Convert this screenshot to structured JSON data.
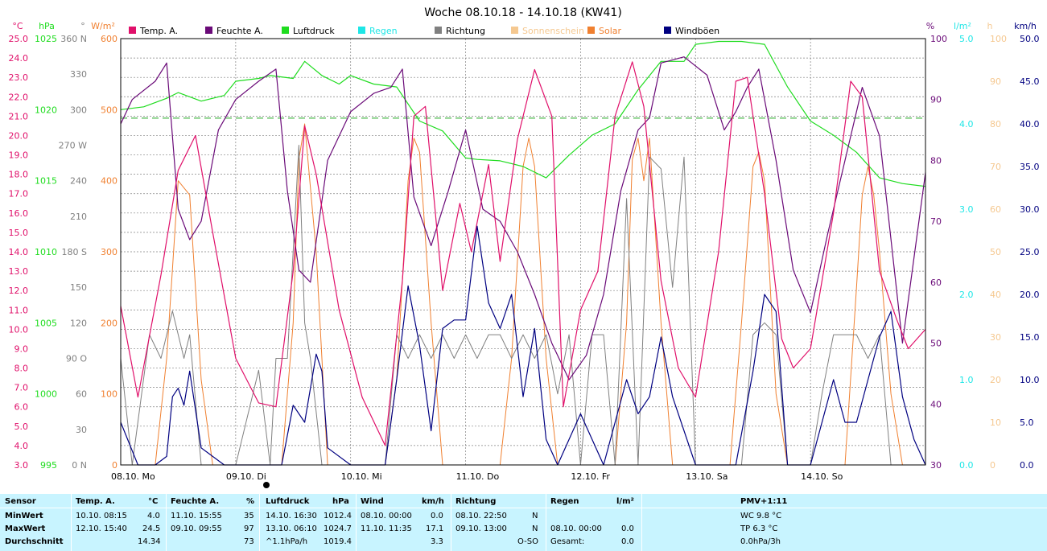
{
  "title": "Woche 08.10.18 - 14.10.18 (KW41)",
  "colors": {
    "temp": "#e0106a",
    "humidity": "#6a0a78",
    "pressure": "#1fdc1f",
    "rain": "#1ee6e6",
    "direction": "#808080",
    "sunshine": "#f5c890",
    "solar": "#f08030",
    "gust": "#000080",
    "grid": "#808080",
    "avg_line": "#1fa81f",
    "table_bg": "#c8f4ff"
  },
  "legend": [
    {
      "key": "temp",
      "label": "Temp. A."
    },
    {
      "key": "humidity",
      "label": "Feuchte A."
    },
    {
      "key": "pressure",
      "label": "Luftdruck"
    },
    {
      "key": "rain",
      "label": "Regen"
    },
    {
      "key": "direction",
      "label": "Richtung"
    },
    {
      "key": "sunshine",
      "label": "Sonnenschein"
    },
    {
      "key": "solar",
      "label": "Solar"
    },
    {
      "key": "gust",
      "label": "Windböen"
    }
  ],
  "axes": {
    "temp": {
      "unit": "°C",
      "ticks": [
        "25.0",
        "24.0",
        "23.0",
        "22.0",
        "21.0",
        "20.0",
        "19.0",
        "18.0",
        "17.0",
        "16.0",
        "15.0",
        "14.0",
        "13.0",
        "12.0",
        "11.0",
        "10.0",
        "9.0",
        "8.0",
        "7.0",
        "6.0",
        "5.0",
        "4.0",
        "3.0"
      ]
    },
    "pressure": {
      "unit": "hPa",
      "ticks": [
        "1025",
        "1020",
        "1015",
        "1010",
        "1005",
        "1000",
        "995"
      ]
    },
    "direction": {
      "unit": "°",
      "ticks": [
        "360 N",
        "330",
        "300",
        "270 W",
        "240",
        "210",
        "180 S",
        "150",
        "120",
        "90 O",
        "60",
        "30",
        "0 N"
      ]
    },
    "solar": {
      "unit": "W/m²",
      "ticks": [
        "600",
        "500",
        "400",
        "300",
        "200",
        "100",
        "0"
      ]
    },
    "humidity": {
      "unit": "%",
      "ticks": [
        "100",
        "90",
        "80",
        "70",
        "60",
        "50",
        "40",
        "30"
      ]
    },
    "rain": {
      "unit": "l/m²",
      "ticks": [
        "5.0",
        "4.0",
        "3.0",
        "2.0",
        "1.0",
        "0.0"
      ]
    },
    "sunshine": {
      "unit": "h",
      "ticks": [
        "100",
        "90",
        "80",
        "70",
        "60",
        "50",
        "40",
        "30",
        "20",
        "10",
        "0"
      ]
    },
    "gust": {
      "unit": "km/h",
      "ticks": [
        "50.0",
        "45.0",
        "40.0",
        "35.0",
        "30.0",
        "25.0",
        "20.0",
        "15.0",
        "10.0",
        "5.0",
        "0.0"
      ]
    }
  },
  "x_labels": [
    "08.10. Mo",
    "09.10. Di",
    "10.10. Mi",
    "11.10. Do",
    "12.10. Fr",
    "13.10. Sa",
    "14.10. So"
  ],
  "chart_data": {
    "type": "line",
    "x_unit": "days since 08.10. 00:00",
    "x_range": [
      0,
      7
    ],
    "pressure_average": 1019.4,
    "series": [
      {
        "name": "Temp. A.",
        "axis": "temp",
        "x": [
          0,
          0.15,
          0.35,
          0.5,
          0.65,
          0.8,
          1.0,
          1.2,
          1.35,
          1.5,
          1.6,
          1.7,
          1.9,
          2.1,
          2.3,
          2.45,
          2.55,
          2.65,
          2.8,
          2.95,
          3.05,
          3.2,
          3.3,
          3.45,
          3.6,
          3.75,
          3.85,
          4.0,
          4.15,
          4.3,
          4.45,
          4.55,
          4.7,
          4.85,
          5.0,
          5.2,
          5.35,
          5.45,
          5.6,
          5.75,
          5.85,
          6.0,
          6.2,
          6.35,
          6.45,
          6.6,
          6.75,
          6.85,
          7.0
        ],
        "values": [
          11.2,
          6.5,
          12.8,
          18.2,
          20.0,
          15.0,
          8.5,
          6.2,
          6.0,
          13.0,
          20.5,
          18.0,
          11.0,
          6.5,
          4.0,
          12.5,
          21.0,
          21.5,
          12.0,
          16.5,
          14.0,
          18.5,
          13.5,
          19.8,
          23.4,
          21.0,
          6.0,
          11.0,
          13.0,
          21.0,
          23.8,
          21.5,
          12.5,
          8.0,
          6.5,
          14.0,
          22.8,
          23.0,
          17.0,
          9.5,
          8.0,
          9.0,
          16.0,
          22.8,
          22.0,
          13.0,
          10.5,
          9.0,
          10.0
        ]
      },
      {
        "name": "Feuchte A.",
        "axis": "humidity",
        "x": [
          0,
          0.1,
          0.3,
          0.4,
          0.5,
          0.6,
          0.7,
          0.85,
          1.0,
          1.2,
          1.35,
          1.45,
          1.55,
          1.65,
          1.8,
          2.0,
          2.2,
          2.35,
          2.45,
          2.55,
          2.7,
          2.85,
          3.0,
          3.15,
          3.3,
          3.45,
          3.6,
          3.75,
          3.9,
          4.05,
          4.2,
          4.35,
          4.5,
          4.6,
          4.7,
          4.9,
          5.1,
          5.25,
          5.35,
          5.45,
          5.55,
          5.7,
          5.85,
          6.0,
          6.15,
          6.3,
          6.45,
          6.6,
          6.8,
          7.0
        ],
        "values": [
          86,
          90,
          93,
          96,
          72,
          67,
          70,
          85,
          90,
          93,
          95,
          75,
          62,
          60,
          80,
          88,
          91,
          92,
          95,
          74,
          66,
          75,
          85,
          72,
          70,
          65,
          58,
          50,
          44,
          48,
          58,
          75,
          85,
          87,
          96,
          97,
          94,
          85,
          88,
          92,
          95,
          80,
          62,
          55,
          68,
          80,
          92,
          84,
          50,
          78
        ]
      },
      {
        "name": "Luftdruck",
        "axis": "pressure",
        "x": [
          0,
          0.2,
          0.4,
          0.5,
          0.7,
          0.9,
          1.0,
          1.2,
          1.3,
          1.5,
          1.6,
          1.75,
          1.9,
          2.0,
          2.2,
          2.4,
          2.6,
          2.8,
          3.0,
          3.1,
          3.3,
          3.5,
          3.7,
          3.9,
          4.1,
          4.3,
          4.5,
          4.7,
          4.9,
          5.0,
          5.2,
          5.4,
          5.6,
          5.8,
          6.0,
          6.2,
          6.4,
          6.6,
          6.8,
          7.0
        ],
        "values": [
          1020.0,
          1020.2,
          1020.8,
          1021.2,
          1020.6,
          1021.0,
          1022.0,
          1022.2,
          1022.4,
          1022.2,
          1023.4,
          1022.4,
          1021.8,
          1022.4,
          1021.8,
          1021.6,
          1019.2,
          1018.5,
          1016.6,
          1016.5,
          1016.4,
          1016.0,
          1015.2,
          1016.8,
          1018.2,
          1019.0,
          1021.4,
          1023.4,
          1023.4,
          1024.6,
          1024.8,
          1024.8,
          1024.6,
          1021.6,
          1019.2,
          1018.2,
          1017.0,
          1015.2,
          1014.8,
          1014.6
        ]
      },
      {
        "name": "Windböen",
        "axis": "gust",
        "x": [
          0,
          0.15,
          0.3,
          0.4,
          0.45,
          0.5,
          0.55,
          0.6,
          0.7,
          0.9,
          1.2,
          1.4,
          1.5,
          1.6,
          1.7,
          1.75,
          1.8,
          2.0,
          2.3,
          2.4,
          2.5,
          2.6,
          2.7,
          2.8,
          2.9,
          3.0,
          3.1,
          3.2,
          3.3,
          3.4,
          3.5,
          3.6,
          3.7,
          3.8,
          4.0,
          4.2,
          4.4,
          4.5,
          4.6,
          4.7,
          4.8,
          5.0,
          5.2,
          5.35,
          5.5,
          5.6,
          5.7,
          5.8,
          5.9,
          6.0,
          6.2,
          6.3,
          6.4,
          6.5,
          6.6,
          6.7,
          6.8,
          6.9,
          7.0
        ],
        "values": [
          5,
          0,
          0,
          1,
          8,
          9,
          7,
          11,
          2,
          0,
          0,
          0,
          7,
          5,
          13,
          11,
          2,
          0,
          0,
          10,
          21,
          14,
          4,
          16,
          17,
          17,
          28,
          19,
          16,
          20,
          8,
          16,
          3,
          0,
          6,
          0,
          10,
          6,
          8,
          15,
          8,
          0,
          0,
          0,
          11,
          20,
          18,
          0,
          0,
          0,
          10,
          5,
          5,
          10,
          15,
          18,
          8,
          3,
          0
        ]
      },
      {
        "name": "Richtung",
        "axis": "direction",
        "x": [
          0,
          0.1,
          0.25,
          0.35,
          0.45,
          0.55,
          0.6,
          0.7,
          0.8,
          1.0,
          1.2,
          1.3,
          1.35,
          1.45,
          1.55,
          1.6,
          1.65,
          1.75,
          1.8,
          2.3,
          2.4,
          2.5,
          2.6,
          2.7,
          2.8,
          2.9,
          3.0,
          3.1,
          3.2,
          3.3,
          3.4,
          3.5,
          3.6,
          3.7,
          3.8,
          3.9,
          4.0,
          4.1,
          4.2,
          4.3,
          4.4,
          4.5,
          4.6,
          4.7,
          4.8,
          4.9,
          5.0,
          5.2,
          5.4,
          5.5,
          5.6,
          5.7,
          5.8,
          5.9,
          6.0,
          6.1,
          6.2,
          6.3,
          6.4,
          6.5,
          6.6,
          6.7,
          6.8,
          6.9,
          7.0
        ],
        "values": [
          90,
          0,
          110,
          90,
          130,
          90,
          110,
          0,
          0,
          0,
          80,
          0,
          90,
          90,
          270,
          120,
          90,
          0,
          0,
          0,
          110,
          90,
          110,
          90,
          110,
          90,
          110,
          90,
          110,
          110,
          90,
          110,
          90,
          110,
          60,
          110,
          0,
          110,
          110,
          0,
          225,
          0,
          260,
          250,
          150,
          260,
          0,
          0,
          0,
          110,
          120,
          110,
          0,
          0,
          0,
          60,
          110,
          110,
          110,
          90,
          110,
          0,
          0,
          0,
          0
        ]
      },
      {
        "name": "Solar",
        "axis": "solar",
        "x": [
          0,
          0.3,
          0.4,
          0.5,
          0.6,
          0.7,
          0.8,
          1.0,
          1.4,
          1.5,
          1.55,
          1.6,
          1.7,
          1.8,
          2.3,
          2.4,
          2.5,
          2.55,
          2.6,
          2.7,
          2.8,
          3.0,
          3.3,
          3.4,
          3.5,
          3.55,
          3.6,
          3.7,
          3.8,
          4.0,
          4.3,
          4.4,
          4.45,
          4.5,
          4.55,
          4.6,
          4.7,
          4.8,
          5.0,
          5.3,
          5.4,
          5.5,
          5.55,
          5.6,
          5.7,
          5.8,
          6.0,
          6.3,
          6.4,
          6.45,
          6.5,
          6.55,
          6.6,
          6.7,
          6.8,
          7.0
        ],
        "values": [
          0,
          0,
          150,
          400,
          380,
          120,
          0,
          0,
          0,
          200,
          430,
          480,
          300,
          0,
          0,
          120,
          400,
          460,
          440,
          200,
          0,
          0,
          0,
          150,
          420,
          460,
          420,
          150,
          0,
          0,
          0,
          200,
          430,
          460,
          400,
          460,
          200,
          0,
          0,
          0,
          200,
          420,
          440,
          400,
          100,
          0,
          0,
          0,
          250,
          380,
          420,
          380,
          300,
          100,
          0,
          0
        ]
      }
    ]
  },
  "table": {
    "row_labels": [
      "Sensor",
      "MinWert",
      "MaxWert",
      "Durchschnitt"
    ],
    "temp": {
      "title": "Temp. A.",
      "unit": "°C",
      "min_time": "10.10.  08:15",
      "min": "4.0",
      "max_time": "12.10.  15:40",
      "max": "24.5",
      "avg": "14.34"
    },
    "humidity": {
      "title": "Feuchte A.",
      "unit": "%",
      "min_time": "11.10.  15:55",
      "min": "35",
      "max_time": "09.10.  09:55",
      "max": "97",
      "avg": "73"
    },
    "pressure": {
      "title": "Luftdruck",
      "unit": "hPa",
      "min_time": "14.10.  16:30",
      "min": "1012.4",
      "max_time": "13.10.  06:10",
      "max": "1024.7",
      "trend": "^1.1hPa/h",
      "avg": "1019.4"
    },
    "wind": {
      "title": "Wind",
      "unit": "km/h",
      "min_time": "08.10.  00:00",
      "min": "0.0",
      "max_time": "11.10.  11:35",
      "max": "17.1",
      "avg": "3.3"
    },
    "direction": {
      "title": "Richtung",
      "min_time": "08.10.  22:50",
      "min": "N",
      "max_time": "09.10.  13:00",
      "max": "N",
      "avg": "O-SO"
    },
    "rain": {
      "title": "Regen",
      "unit": "l/m²",
      "max_time": "08.10.  00:00",
      "max": "0.0",
      "total_label": "Gesamt:",
      "total": "0.0"
    },
    "pmv": {
      "title": "PMV+1:11",
      "wc": "WC 9.8 °C",
      "tp": "TP 6.3 °C",
      "trend": "0.0hPa/3h"
    }
  }
}
